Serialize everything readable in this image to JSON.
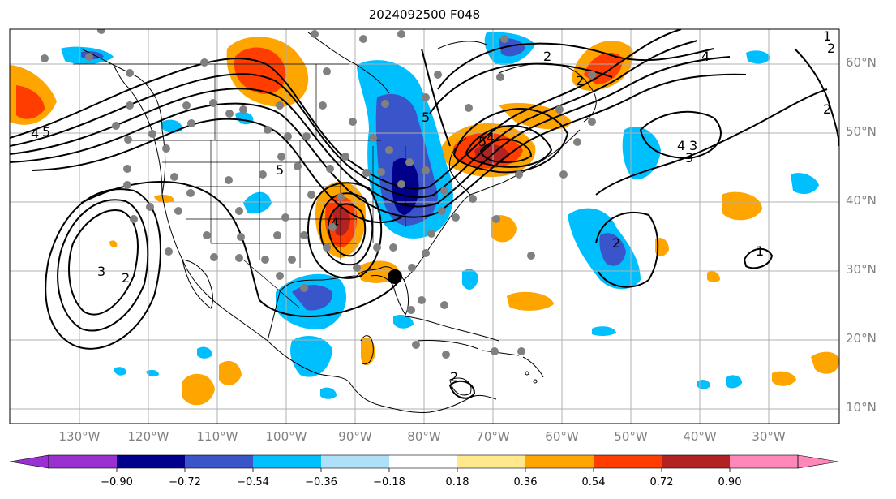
{
  "title": "2024092500 F048",
  "lat_labels": [
    "60°N",
    "50°N",
    "40°N",
    "30°N",
    "20°N",
    "10°N"
  ],
  "lon_labels": [
    "130°W",
    "120°W",
    "110°W",
    "100°W",
    "90°W",
    "80°W",
    "70°W",
    "60°W",
    "50°W",
    "40°W",
    "30°W"
  ],
  "colorbar": {
    "ticks": [
      "−0.90",
      "−0.72",
      "−0.54",
      "−0.36",
      "−0.18",
      "0.18",
      "0.36",
      "0.54",
      "0.72",
      "0.90"
    ],
    "colors": [
      "#9b30d0",
      "#00008b",
      "#3a55c9",
      "#00bfff",
      "#aee0fa",
      "#ffffff",
      "#ffe98c",
      "#ffa500",
      "#ff3d00",
      "#b22222",
      "#ff88b8"
    ]
  },
  "contour_labels": [
    "4",
    "5",
    "5",
    "5",
    "5",
    "4",
    "4",
    "3",
    "2",
    "1",
    "2",
    "3",
    "4",
    "2",
    "2",
    "2",
    "1",
    "2",
    "3",
    "4",
    "2"
  ],
  "colors": {
    "low": "#00008b",
    "high": "#b22222",
    "coastline": "#000000",
    "grid": "#b0b0b0",
    "station": "#808080"
  }
}
